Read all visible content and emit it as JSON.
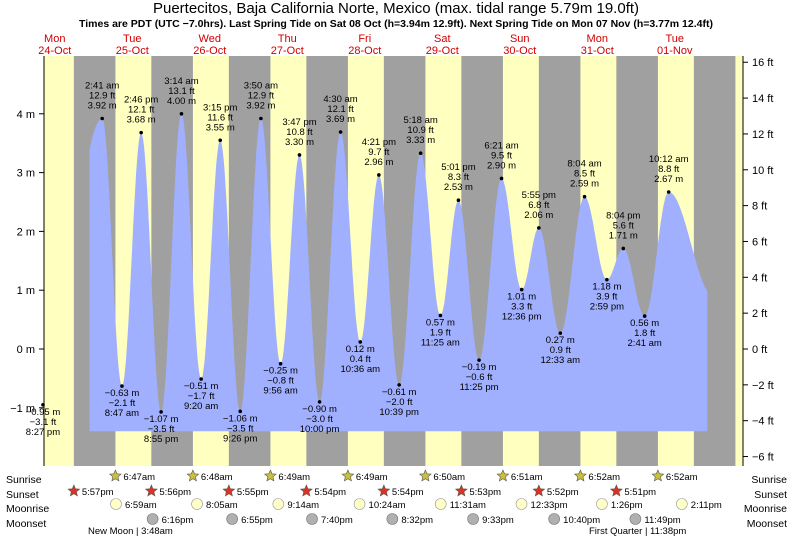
{
  "title": "Puertecitos, Baja California Norte, Mexico (max. tidal range 5.79m 19.0ft)",
  "subtitle": "Times are PDT (UTC −7.0hrs). Last Spring Tide on Sat 08 Oct (h=3.94m 12.9ft). Next Spring Tide on Mon 07 Nov (h=3.77m 12.4ft)",
  "colors": {
    "day": "#ffffc0",
    "night": "#a0a0a0",
    "tide_fill": "#a0b0ff",
    "day_text": "#d00000",
    "sunrise_star": "#c8c040",
    "sunset_star": "#e03020",
    "moonrise": "#ffffc8",
    "moonset": "#b0b0b0"
  },
  "chart_data": {
    "type": "area",
    "days": [
      {
        "dow": "Mon",
        "date": "24-Oct"
      },
      {
        "dow": "Tue",
        "date": "25-Oct"
      },
      {
        "dow": "Wed",
        "date": "26-Oct"
      },
      {
        "dow": "Thu",
        "date": "27-Oct"
      },
      {
        "dow": "Fri",
        "date": "28-Oct"
      },
      {
        "dow": "Sat",
        "date": "29-Oct"
      },
      {
        "dow": "Sun",
        "date": "30-Oct"
      },
      {
        "dow": "Mon",
        "date": "31-Oct"
      },
      {
        "dow": "Tue",
        "date": "01-Nov"
      }
    ],
    "y_left": {
      "unit": "m",
      "ticks": [
        -1,
        0,
        1,
        2,
        3,
        4
      ],
      "tick_labels": [
        "−1 m",
        "0 m",
        "1 m",
        "2 m",
        "3 m",
        "4 m"
      ]
    },
    "y_right": {
      "unit": "ft",
      "ticks": [
        -6,
        -4,
        -2,
        0,
        2,
        4,
        6,
        8,
        10,
        12,
        14,
        16
      ],
      "tick_labels": [
        "−6 ft",
        "−4 ft",
        "−2 ft",
        "0 ft",
        "2 ft",
        "4 ft",
        "6 ft",
        "8 ft",
        "10 ft",
        "12 ft",
        "14 ft",
        "16 ft"
      ]
    },
    "ylim_m": [
      -1.85,
      5.0
    ],
    "x_range_days": [
      0,
      9.45
    ],
    "tides": [
      {
        "t": 0.348,
        "m": -0.95,
        "lines": [
          "−0.95 m",
          "−3.1 ft",
          "8:27 pm"
        ],
        "type": "low"
      },
      {
        "t": 1.112,
        "m": 3.92,
        "lines": [
          "2:41 am",
          "12.9 ft",
          "3.92 m"
        ],
        "type": "high"
      },
      {
        "t": 1.367,
        "m": -0.63,
        "lines": [
          "−0.63 m",
          "−2.1 ft",
          "8:47 am"
        ],
        "type": "low"
      },
      {
        "t": 1.615,
        "m": 3.68,
        "lines": [
          "2:46 pm",
          "12.1 ft",
          "3.68 m"
        ],
        "type": "high"
      },
      {
        "t": 1.872,
        "m": -1.07,
        "lines": [
          "−1.07 m",
          "−3.5 ft",
          "8:55 pm"
        ],
        "type": "low"
      },
      {
        "t": 2.135,
        "m": 4.0,
        "lines": [
          "3:14 am",
          "13.1 ft",
          "4.00 m"
        ],
        "type": "high"
      },
      {
        "t": 2.389,
        "m": -0.51,
        "lines": [
          "−0.51 m",
          "−1.7 ft",
          "9:20 am"
        ],
        "type": "low"
      },
      {
        "t": 2.635,
        "m": 3.55,
        "lines": [
          "3:15 pm",
          "11.6 ft",
          "3.55 m"
        ],
        "type": "high"
      },
      {
        "t": 2.893,
        "m": -1.06,
        "lines": [
          "−1.06 m",
          "−3.5 ft",
          "9:26 pm"
        ],
        "type": "low"
      },
      {
        "t": 3.16,
        "m": 3.92,
        "lines": [
          "3:50 am",
          "12.9 ft",
          "3.92 m"
        ],
        "type": "high"
      },
      {
        "t": 3.414,
        "m": -0.25,
        "lines": [
          "−0.25 m",
          "−0.8 ft",
          "9:56 am"
        ],
        "type": "low"
      },
      {
        "t": 3.658,
        "m": 3.3,
        "lines": [
          "3:47 pm",
          "10.8 ft",
          "3.30 m"
        ],
        "type": "high"
      },
      {
        "t": 3.917,
        "m": -0.9,
        "lines": [
          "−0.90 m",
          "−3.0 ft",
          "10:00 pm"
        ],
        "type": "low"
      },
      {
        "t": 4.188,
        "m": 3.69,
        "lines": [
          "4:30 am",
          "12.1 ft",
          "3.69 m"
        ],
        "type": "high"
      },
      {
        "t": 4.442,
        "m": 0.12,
        "lines": [
          "0.12 m",
          "0.4 ft",
          "10:36 am"
        ],
        "type": "low"
      },
      {
        "t": 4.682,
        "m": 2.96,
        "lines": [
          "4:21 pm",
          "9.7 ft",
          "2.96 m"
        ],
        "type": "high"
      },
      {
        "t": 4.944,
        "m": -0.61,
        "lines": [
          "−0.61 m",
          "−2.0 ft",
          "10:39 pm"
        ],
        "type": "low"
      },
      {
        "t": 5.221,
        "m": 3.33,
        "lines": [
          "5:18 am",
          "10.9 ft",
          "3.33 m"
        ],
        "type": "high"
      },
      {
        "t": 5.476,
        "m": 0.57,
        "lines": [
          "0.57 m",
          "1.9 ft",
          "11:25 am"
        ],
        "type": "low"
      },
      {
        "t": 5.709,
        "m": 2.53,
        "lines": [
          "5:01 pm",
          "8.3 ft",
          "2.53 m"
        ],
        "type": "high"
      },
      {
        "t": 5.975,
        "m": -0.19,
        "lines": [
          "−0.19 m",
          "−0.6 ft",
          "11:25 pm"
        ],
        "type": "low"
      },
      {
        "t": 6.265,
        "m": 2.9,
        "lines": [
          "6:21 am",
          "9.5 ft",
          "2.90 m"
        ],
        "type": "high"
      },
      {
        "t": 6.525,
        "m": 1.01,
        "lines": [
          "1.01 m",
          "3.3 ft",
          "12:36 pm"
        ],
        "type": "low"
      },
      {
        "t": 6.746,
        "m": 2.06,
        "lines": [
          "5:55 pm",
          "6.8 ft",
          "2.06 m"
        ],
        "type": "high"
      },
      {
        "t": 7.023,
        "m": 0.27,
        "lines": [
          "0.27 m",
          "0.9 ft",
          "12:33 am"
        ],
        "type": "low"
      },
      {
        "t": 7.336,
        "m": 2.59,
        "lines": [
          "8:04 am",
          "8.5 ft",
          "2.59 m"
        ],
        "type": "high"
      },
      {
        "t": 7.624,
        "m": 1.18,
        "lines": [
          "1.18 m",
          "3.9 ft",
          "2:59 pm"
        ],
        "type": "low"
      },
      {
        "t": 7.836,
        "m": 1.71,
        "lines": [
          "8:04 pm",
          "5.6 ft",
          "1.71 m"
        ],
        "type": "high"
      },
      {
        "t": 8.112,
        "m": 0.56,
        "lines": [
          "0.56 m",
          "1.8 ft",
          "2:41 am"
        ],
        "type": "low"
      },
      {
        "t": 8.422,
        "m": 2.67,
        "lines": [
          "10:12 am",
          "8.8 ft",
          "2.67 m"
        ],
        "type": "high"
      }
    ],
    "sunrise": [
      "6:47am",
      "6:48am",
      "6:49am",
      "6:49am",
      "6:50am",
      "6:51am",
      "6:52am",
      "6:52am"
    ],
    "sunset": [
      "5:57pm",
      "5:56pm",
      "5:55pm",
      "5:54pm",
      "5:54pm",
      "5:53pm",
      "5:52pm",
      "5:51pm"
    ],
    "moonrise": [
      "6:59am",
      "8:05am",
      "9:14am",
      "10:24am",
      "11:31am",
      "12:33pm",
      "1:26pm",
      "2:11pm"
    ],
    "moonset": [
      "6:16pm",
      "6:55pm",
      "7:40pm",
      "8:32pm",
      "9:33pm",
      "10:40pm",
      "11:49pm"
    ],
    "moon_phases": [
      "New Moon | 3:48am",
      "First Quarter | 11:38pm"
    ]
  },
  "row_labels": {
    "sunrise": "Sunrise",
    "sunset": "Sunset",
    "moonrise": "Moonrise",
    "moonset": "Moonset"
  }
}
